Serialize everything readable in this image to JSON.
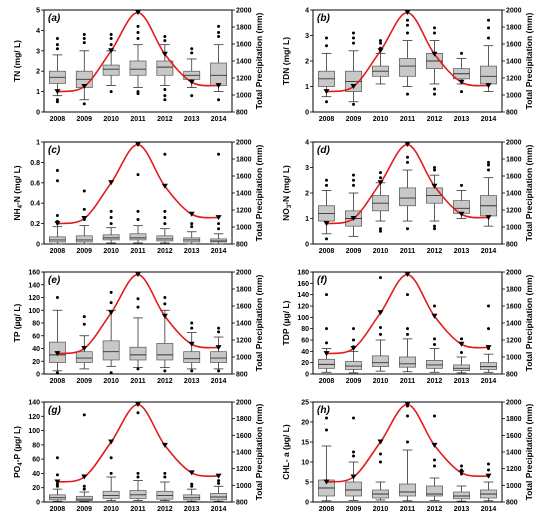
{
  "figure": {
    "type": "box-with-precipitation-line",
    "years": [
      "2008",
      "2009",
      "2010",
      "2011",
      "2012",
      "2013",
      "2014"
    ],
    "precip": {
      "ylabel": "Total Precipitation (mm)",
      "ylim": [
        800,
        2000
      ],
      "ticks": [
        800,
        1000,
        1200,
        1400,
        1600,
        1800,
        2000
      ],
      "values": [
        1040,
        1100,
        1520,
        1970,
        1480,
        1150,
        1110
      ],
      "color": "#e31a1c"
    },
    "box_color": "#c8c8c8"
  },
  "chart_data": [
    {
      "type": "box",
      "panel_label": "(a)",
      "ylabel": "TN (mg/ L)",
      "ylim": [
        0,
        5
      ],
      "yticks": [
        0,
        1,
        2,
        3,
        4,
        5
      ],
      "categories": [
        "2008",
        "2009",
        "2010",
        "2011",
        "2012",
        "2013",
        "2014"
      ],
      "boxes": [
        {
          "low": 0.8,
          "q1": 1.4,
          "med": 1.7,
          "q3": 2.0,
          "high": 2.8,
          "outliers": [
            3.1,
            3.3,
            3.6,
            0.5,
            0.6
          ]
        },
        {
          "low": 0.6,
          "q1": 1.2,
          "med": 1.6,
          "q3": 2.0,
          "high": 3.0,
          "outliers": [
            3.4,
            3.6,
            3.8,
            0.4
          ]
        },
        {
          "low": 1.3,
          "q1": 1.8,
          "med": 2.1,
          "q3": 2.3,
          "high": 3.0,
          "outliers": [
            3.3,
            3.6,
            3.8,
            1.0
          ]
        },
        {
          "low": 1.2,
          "q1": 1.8,
          "med": 2.1,
          "q3": 2.5,
          "high": 3.3,
          "outliers": [
            3.6,
            3.9,
            4.2,
            1.0,
            0.9
          ]
        },
        {
          "low": 1.3,
          "q1": 1.8,
          "med": 2.2,
          "q3": 2.5,
          "high": 3.3,
          "outliers": [
            3.5,
            3.7,
            1.1,
            0.8,
            0.6
          ]
        },
        {
          "low": 1.2,
          "q1": 1.6,
          "med": 1.8,
          "q3": 2.0,
          "high": 2.6,
          "outliers": [
            2.9,
            3.1,
            0.8
          ]
        },
        {
          "low": 1.0,
          "q1": 1.3,
          "med": 1.8,
          "q3": 2.4,
          "high": 3.3,
          "outliers": [
            3.7,
            3.9,
            4.2,
            0.6
          ]
        }
      ]
    },
    {
      "type": "box",
      "panel_label": "(b)",
      "ylabel": "TDN (mg/ L)",
      "ylim": [
        0,
        4
      ],
      "yticks": [
        0,
        1,
        2,
        3,
        4
      ],
      "categories": [
        "2008",
        "2009",
        "2010",
        "2011",
        "2012",
        "2013",
        "2014"
      ],
      "boxes": [
        {
          "low": 0.6,
          "q1": 1.0,
          "med": 1.3,
          "q3": 1.6,
          "high": 2.3,
          "outliers": [
            2.6,
            2.9,
            0.4
          ]
        },
        {
          "low": 0.4,
          "q1": 0.8,
          "med": 1.2,
          "q3": 1.6,
          "high": 2.4,
          "outliers": [
            2.7,
            2.9,
            3.1,
            0.3
          ]
        },
        {
          "low": 1.1,
          "q1": 1.4,
          "med": 1.6,
          "q3": 1.8,
          "high": 2.3,
          "outliers": [
            2.5,
            2.7,
            2.8
          ]
        },
        {
          "low": 1.0,
          "q1": 1.4,
          "med": 1.8,
          "q3": 2.1,
          "high": 2.8,
          "outliers": [
            3.1,
            3.4,
            3.6,
            0.7
          ]
        },
        {
          "low": 1.1,
          "q1": 1.7,
          "med": 2.0,
          "q3": 2.3,
          "high": 2.8,
          "outliers": [
            3.1,
            3.3,
            0.9,
            0.7
          ]
        },
        {
          "low": 1.1,
          "q1": 1.3,
          "med": 1.5,
          "q3": 1.7,
          "high": 2.1,
          "outliers": [
            2.3,
            0.8
          ]
        },
        {
          "low": 0.8,
          "q1": 1.1,
          "med": 1.4,
          "q3": 1.8,
          "high": 2.6,
          "outliers": [
            2.9,
            3.3,
            3.6
          ]
        }
      ]
    },
    {
      "type": "box",
      "panel_label": "(c)",
      "ylabel": "NH4-N (mg/ L)",
      "ylim": [
        0,
        1.0
      ],
      "yticks": [
        0.0,
        0.2,
        0.4,
        0.6,
        0.8,
        1.0
      ],
      "categories": [
        "2008",
        "2009",
        "2010",
        "2011",
        "2012",
        "2013",
        "2014"
      ],
      "boxes": [
        {
          "low": 0.0,
          "q1": 0.02,
          "med": 0.04,
          "q3": 0.07,
          "high": 0.17,
          "outliers": [
            0.22,
            0.28,
            0.62,
            0.72
          ]
        },
        {
          "low": 0.0,
          "q1": 0.02,
          "med": 0.04,
          "q3": 0.08,
          "high": 0.18,
          "outliers": [
            0.24,
            0.34,
            0.52
          ]
        },
        {
          "low": 0.01,
          "q1": 0.04,
          "med": 0.06,
          "q3": 0.09,
          "high": 0.16,
          "outliers": [
            0.2,
            0.26,
            0.32
          ]
        },
        {
          "low": 0.01,
          "q1": 0.04,
          "med": 0.06,
          "q3": 0.1,
          "high": 0.18,
          "outliers": [
            0.24,
            0.32,
            0.68
          ]
        },
        {
          "low": 0.01,
          "q1": 0.03,
          "med": 0.05,
          "q3": 0.08,
          "high": 0.15,
          "outliers": [
            0.2,
            0.26,
            0.32,
            0.88
          ]
        },
        {
          "low": 0.0,
          "q1": 0.02,
          "med": 0.04,
          "q3": 0.06,
          "high": 0.12,
          "outliers": [
            0.17,
            0.2
          ]
        },
        {
          "low": 0.0,
          "q1": 0.02,
          "med": 0.03,
          "q3": 0.05,
          "high": 0.1,
          "outliers": [
            0.15,
            0.2,
            0.88
          ]
        }
      ]
    },
    {
      "type": "box",
      "panel_label": "(d)",
      "ylabel": "NO3-N (mg/ L)",
      "ylim": [
        0,
        4
      ],
      "yticks": [
        0,
        1,
        2,
        3,
        4
      ],
      "categories": [
        "2008",
        "2009",
        "2010",
        "2011",
        "2012",
        "2013",
        "2014"
      ],
      "boxes": [
        {
          "low": 0.4,
          "q1": 0.9,
          "med": 1.2,
          "q3": 1.5,
          "high": 2.1,
          "outliers": [
            2.3,
            2.5,
            0.2
          ]
        },
        {
          "low": 0.3,
          "q1": 0.7,
          "med": 1.0,
          "q3": 1.3,
          "high": 2.0,
          "outliers": [
            2.3,
            2.5,
            2.7
          ]
        },
        {
          "low": 0.9,
          "q1": 1.3,
          "med": 1.6,
          "q3": 1.9,
          "high": 2.4,
          "outliers": [
            2.6,
            2.8,
            0.6,
            0.5
          ]
        },
        {
          "low": 0.9,
          "q1": 1.5,
          "med": 1.8,
          "q3": 2.2,
          "high": 2.9,
          "outliers": [
            3.2,
            3.4,
            0.6
          ]
        },
        {
          "low": 0.9,
          "q1": 1.6,
          "med": 1.9,
          "q3": 2.2,
          "high": 2.7,
          "outliers": [
            2.9,
            3.0,
            0.7,
            0.6
          ]
        },
        {
          "low": 1.0,
          "q1": 1.2,
          "med": 1.4,
          "q3": 1.7,
          "high": 2.1,
          "outliers": [
            2.3
          ]
        },
        {
          "low": 0.7,
          "q1": 1.1,
          "med": 1.5,
          "q3": 1.9,
          "high": 2.6,
          "outliers": [
            2.9,
            3.1,
            3.2
          ]
        }
      ]
    },
    {
      "type": "box",
      "panel_label": "(e)",
      "ylabel": "TP (µg/ L)",
      "ylim": [
        0,
        160
      ],
      "yticks": [
        0,
        20,
        40,
        60,
        80,
        100,
        120,
        140,
        160
      ],
      "categories": [
        "2008",
        "2009",
        "2010",
        "2011",
        "2012",
        "2013",
        "2014"
      ],
      "boxes": [
        {
          "low": 5,
          "q1": 18,
          "med": 30,
          "q3": 50,
          "high": 100,
          "outliers": [
            120,
            2
          ]
        },
        {
          "low": 8,
          "q1": 18,
          "med": 25,
          "q3": 35,
          "high": 60,
          "outliers": [
            78,
            90
          ]
        },
        {
          "low": 12,
          "q1": 22,
          "med": 35,
          "q3": 52,
          "high": 100,
          "outliers": [
            112,
            128,
            2
          ]
        },
        {
          "low": 10,
          "q1": 22,
          "med": 30,
          "q3": 42,
          "high": 88,
          "outliers": [
            105,
            118,
            8
          ]
        },
        {
          "low": 10,
          "q1": 22,
          "med": 30,
          "q3": 48,
          "high": 100,
          "outliers": [
            110,
            120,
            5
          ]
        },
        {
          "low": 8,
          "q1": 18,
          "med": 24,
          "q3": 35,
          "high": 65,
          "outliers": [
            72,
            80,
            5
          ]
        },
        {
          "low": 8,
          "q1": 18,
          "med": 25,
          "q3": 35,
          "high": 58,
          "outliers": [
            66,
            72,
            5
          ]
        }
      ]
    },
    {
      "type": "box",
      "panel_label": "(f)",
      "ylabel": "TDP (µg/ L)",
      "ylim": [
        0,
        180
      ],
      "yticks": [
        0,
        20,
        40,
        60,
        80,
        100,
        120,
        140,
        160,
        180
      ],
      "categories": [
        "2008",
        "2009",
        "2010",
        "2011",
        "2012",
        "2013",
        "2014"
      ],
      "boxes": [
        {
          "low": 3,
          "q1": 10,
          "med": 17,
          "q3": 26,
          "high": 45,
          "outliers": [
            55,
            80,
            140
          ]
        },
        {
          "low": 2,
          "q1": 8,
          "med": 14,
          "q3": 22,
          "high": 40,
          "outliers": [
            48,
            60,
            80
          ]
        },
        {
          "low": 5,
          "q1": 13,
          "med": 20,
          "q3": 32,
          "high": 60,
          "outliers": [
            70,
            82,
            170
          ]
        },
        {
          "low": 4,
          "q1": 12,
          "med": 18,
          "q3": 30,
          "high": 62,
          "outliers": [
            70,
            80,
            140
          ]
        },
        {
          "low": 3,
          "q1": 10,
          "med": 16,
          "q3": 24,
          "high": 45,
          "outliers": [
            52,
            62,
            120
          ]
        },
        {
          "low": 2,
          "q1": 6,
          "med": 10,
          "q3": 16,
          "high": 30,
          "outliers": [
            38,
            62
          ]
        },
        {
          "low": 3,
          "q1": 8,
          "med": 13,
          "q3": 20,
          "high": 35,
          "outliers": [
            45,
            80,
            120
          ]
        }
      ]
    },
    {
      "type": "box",
      "panel_label": "(g)",
      "ylabel": "PO4-P (µg/ L)",
      "ylim": [
        0,
        140
      ],
      "yticks": [
        0,
        20,
        40,
        60,
        80,
        100,
        120,
        140
      ],
      "categories": [
        "2008",
        "2009",
        "2010",
        "2011",
        "2012",
        "2013",
        "2014"
      ],
      "boxes": [
        {
          "low": 1,
          "q1": 3,
          "med": 6,
          "q3": 10,
          "high": 18,
          "outliers": [
            22,
            25,
            38,
            62
          ]
        },
        {
          "low": 1,
          "q1": 2,
          "med": 4,
          "q3": 8,
          "high": 14,
          "outliers": [
            18,
            22,
            122
          ]
        },
        {
          "low": 2,
          "q1": 5,
          "med": 9,
          "q3": 15,
          "high": 35,
          "outliers": [
            40,
            62
          ]
        },
        {
          "low": 2,
          "q1": 5,
          "med": 10,
          "q3": 16,
          "high": 30,
          "outliers": [
            35,
            40,
            125
          ]
        },
        {
          "low": 2,
          "q1": 4,
          "med": 9,
          "q3": 15,
          "high": 28,
          "outliers": [
            35,
            40
          ]
        },
        {
          "low": 1,
          "q1": 3,
          "med": 6,
          "q3": 10,
          "high": 18,
          "outliers": [
            22,
            25
          ]
        },
        {
          "low": 1,
          "q1": 3,
          "med": 7,
          "q3": 12,
          "high": 22,
          "outliers": [
            26,
            30
          ]
        }
      ]
    },
    {
      "type": "box",
      "panel_label": "(h)",
      "ylabel": "CHL- a (µg/ L)",
      "ylim": [
        0,
        25
      ],
      "yticks": [
        0,
        5,
        10,
        15,
        20,
        25
      ],
      "categories": [
        "2008",
        "2009",
        "2010",
        "2011",
        "2012",
        "2013",
        "2014"
      ],
      "boxes": [
        {
          "low": 0.3,
          "q1": 1.5,
          "med": 3.5,
          "q3": 5.5,
          "high": 14,
          "outliers": [
            18,
            21
          ]
        },
        {
          "low": 0.4,
          "q1": 1.5,
          "med": 3.0,
          "q3": 5.0,
          "high": 10,
          "outliers": [
            11.5,
            12.5,
            21
          ]
        },
        {
          "low": 0.5,
          "q1": 1.0,
          "med": 2.0,
          "q3": 3.0,
          "high": 5,
          "outliers": [
            10,
            12,
            15
          ]
        },
        {
          "low": 0.3,
          "q1": 1.5,
          "med": 2.5,
          "q3": 4.5,
          "high": 13,
          "outliers": [
            15,
            21.5,
            24
          ]
        },
        {
          "low": 0.4,
          "q1": 1.5,
          "med": 2.0,
          "q3": 4.0,
          "high": 6,
          "outliers": [
            9,
            10.5,
            21.5
          ]
        },
        {
          "low": 0.2,
          "q1": 0.8,
          "med": 1.5,
          "q3": 2.5,
          "high": 4,
          "outliers": [
            7,
            8,
            9
          ]
        },
        {
          "low": 0.3,
          "q1": 1.0,
          "med": 2.0,
          "q3": 3.0,
          "high": 5,
          "outliers": [
            6.5,
            8,
            9.5
          ]
        }
      ]
    }
  ]
}
